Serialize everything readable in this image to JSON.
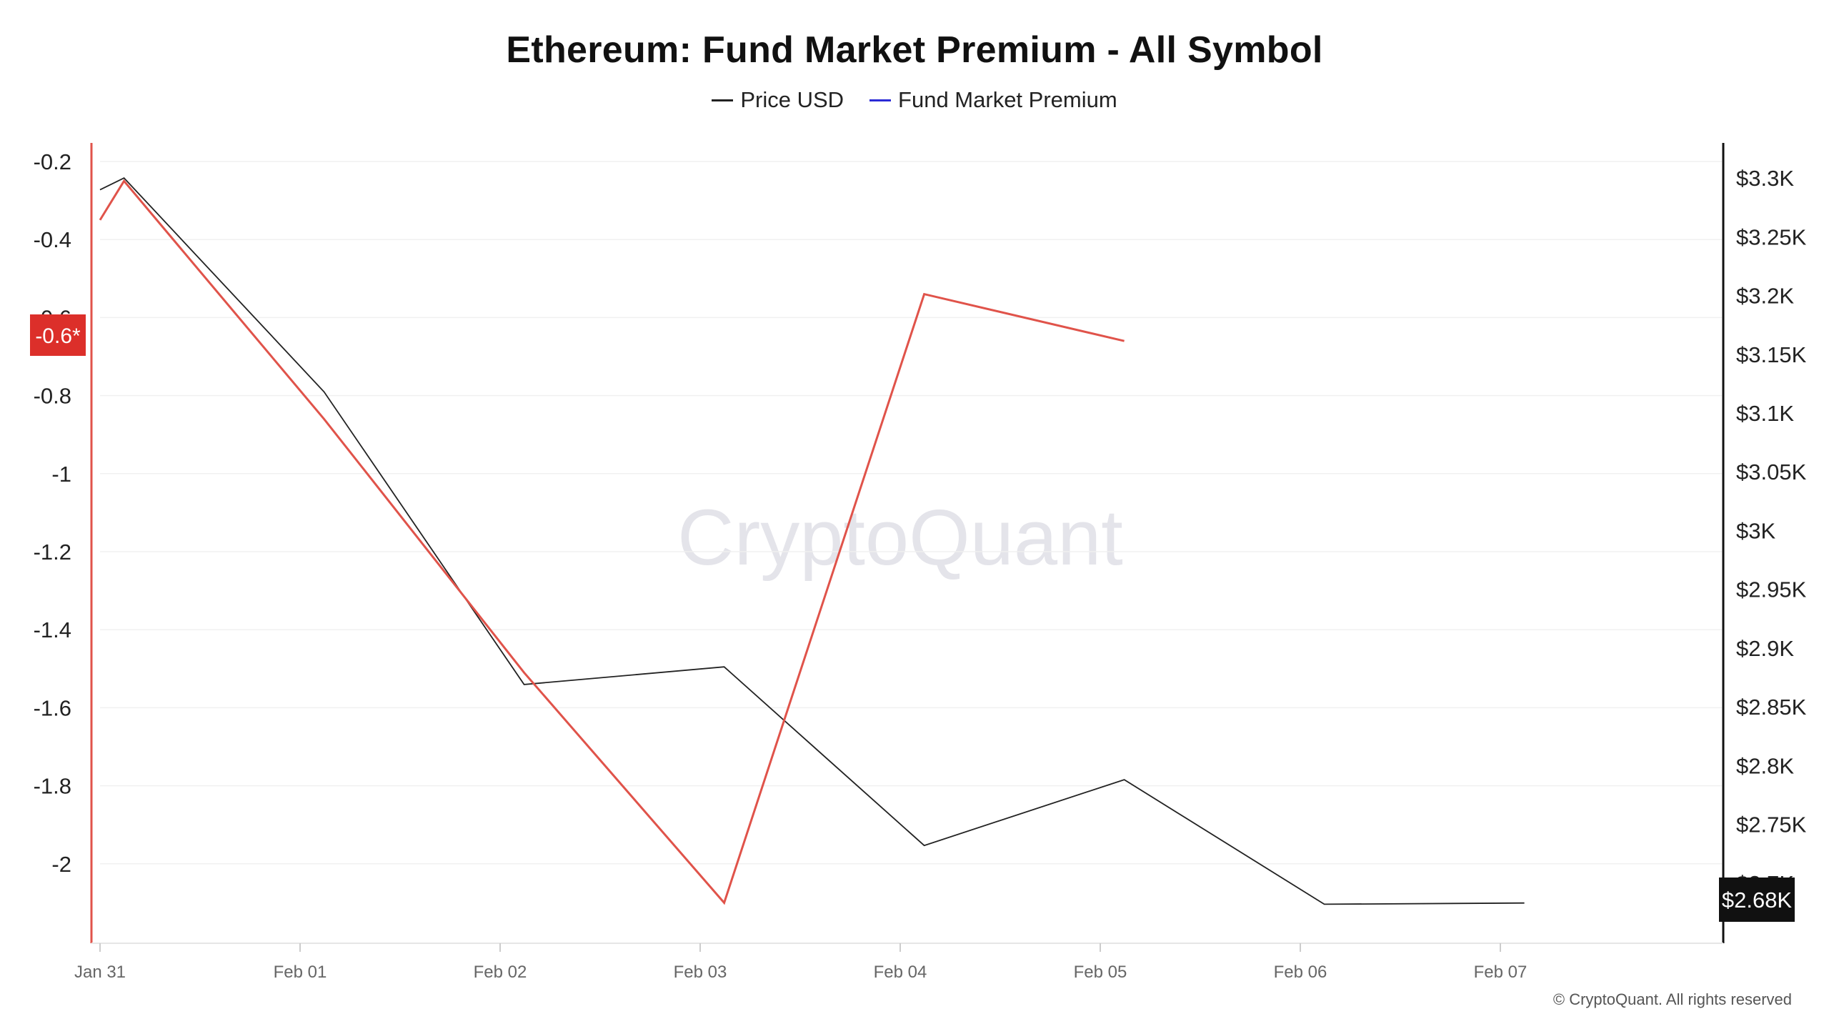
{
  "title": "Ethereum: Fund Market Premium - All Symbol",
  "watermark": "CryptoQuant",
  "copyright": "© CryptoQuant. All rights reserved",
  "colors": {
    "price": "#222222",
    "premium": "#e0534a",
    "premium_legend": "#2b2bd6",
    "badge_red": "#dc2f2a",
    "badge_dark": "#111111"
  },
  "legend": [
    {
      "label": "Price USD",
      "color": "#222222"
    },
    {
      "label": "Fund Market Premium",
      "color": "#2b2bd6"
    }
  ],
  "chart_data": {
    "type": "line",
    "title": "Ethereum: Fund Market Premium - All Symbol",
    "x": [
      "Jan 31",
      "Jan 31",
      "Feb 01",
      "Feb 02",
      "Feb 03",
      "Feb 04",
      "Feb 05",
      "Feb 06",
      "Feb 07"
    ],
    "x_ticks": [
      "Jan 31",
      "Feb 01",
      "Feb 02",
      "Feb 03",
      "Feb 04",
      "Feb 05",
      "Feb 06",
      "Feb 07"
    ],
    "x_numeric": [
      0,
      0.12,
      1.12,
      2.12,
      3.12,
      4.12,
      5.12,
      6.12,
      7.12
    ],
    "left_axis": {
      "ticks": [
        -0.2,
        -0.4,
        -0.6,
        -0.8,
        -1,
        -1.2,
        -1.4,
        -1.6,
        -1.8,
        -2
      ],
      "tick_labels": [
        "-0.2",
        "-0.4",
        "-0.6",
        "-0.8",
        "-1",
        "-1.2",
        "-1.4",
        "-1.6",
        "-1.8",
        "-2"
      ],
      "ylim": [
        -2.2,
        -0.2
      ],
      "badge": "-0.6*"
    },
    "right_axis": {
      "ticks": [
        3300,
        3250,
        3200,
        3150,
        3100,
        3050,
        3000,
        2950,
        2900,
        2850,
        2800,
        2750,
        2700
      ],
      "tick_labels": [
        "$3.3K",
        "$3.25K",
        "$3.2K",
        "$3.15K",
        "$3.1K",
        "$3.05K",
        "$3K",
        "$2.95K",
        "$2.9K",
        "$2.85K",
        "$2.8K",
        "$2.75K",
        "$2.7K"
      ],
      "ylim": [
        2650,
        3325
      ],
      "badge": "$2.68K"
    },
    "series": [
      {
        "name": "Price USD",
        "axis": "right",
        "color": "#222222",
        "values": [
          3290,
          3300,
          3118,
          2869,
          2884,
          2732,
          2788,
          2682,
          2683
        ]
      },
      {
        "name": "Fund Market Premium",
        "axis": "left",
        "color": "#e0534a",
        "values": [
          -0.35,
          -0.25,
          -0.86,
          -1.51,
          -2.1,
          -0.54,
          -0.66,
          null,
          null
        ]
      }
    ],
    "grid": true,
    "legend_position": "top-center"
  }
}
